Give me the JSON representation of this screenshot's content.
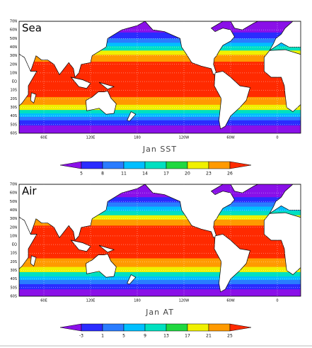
{
  "panels": [
    {
      "label": "Sea",
      "title": "Jan SST",
      "colorbar": [
        "5",
        "8",
        "11",
        "14",
        "17",
        "20",
        "23",
        "26"
      ]
    },
    {
      "label": "Air",
      "title": "Jan AT",
      "colorbar": [
        "-3",
        "1",
        "5",
        "9",
        "13",
        "17",
        "21",
        "25"
      ]
    }
  ],
  "lat_labels": [
    "70N",
    "60N",
    "50N",
    "40N",
    "30N",
    "20N",
    "10N",
    "EQ",
    "10S",
    "20S",
    "30S",
    "40S",
    "50S",
    "60S"
  ],
  "lon_labels": [
    "60E",
    "120E",
    "180",
    "120W",
    "60W",
    "0"
  ]
}
